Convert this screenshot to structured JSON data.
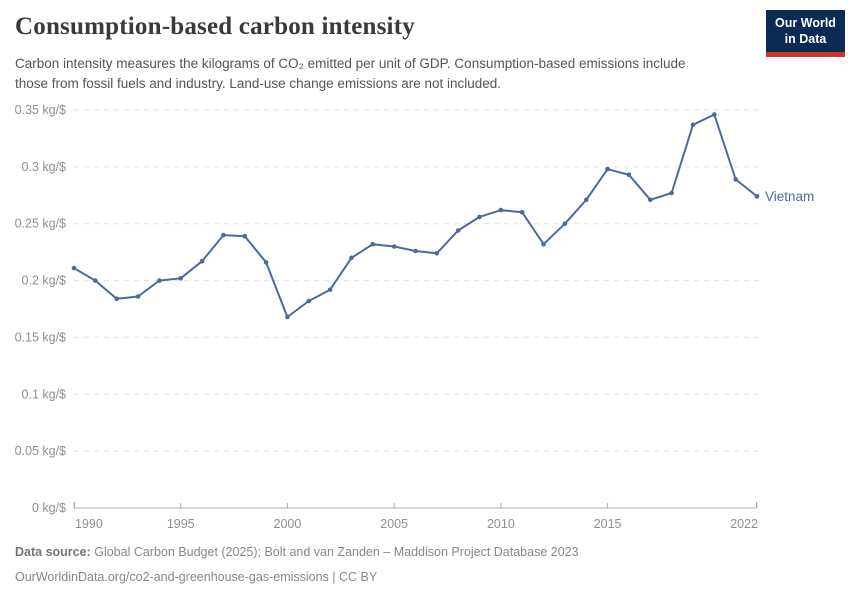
{
  "header": {
    "title": "Consumption-based carbon intensity",
    "subtitle": "Carbon intensity measures the kilograms of CO₂ emitted per unit of GDP. Consumption-based emissions include those from fossil fuels and industry. Land-use change emissions are not included.",
    "logo": {
      "line1": "Our World",
      "line2": "in Data",
      "bg_color": "#0c2b52",
      "accent_color": "#d0342c"
    }
  },
  "chart_data": {
    "type": "line",
    "title": "Consumption-based carbon intensity",
    "unit": "kg/$",
    "xlabel": "",
    "ylabel": "",
    "xlim": [
      1990,
      2022
    ],
    "ylim": [
      0,
      0.35
    ],
    "grid": "horizontal-dashed",
    "legend": "end-of-line-label",
    "series": [
      {
        "name": "Vietnam",
        "color": "#4c6a9c",
        "x": [
          1990,
          1991,
          1992,
          1993,
          1994,
          1995,
          1996,
          1997,
          1998,
          1999,
          2000,
          2001,
          2002,
          2003,
          2004,
          2005,
          2006,
          2007,
          2008,
          2009,
          2010,
          2011,
          2012,
          2013,
          2014,
          2015,
          2016,
          2017,
          2018,
          2019,
          2020,
          2021,
          2022
        ],
        "values": [
          0.211,
          0.2,
          0.184,
          0.186,
          0.2,
          0.202,
          0.217,
          0.24,
          0.239,
          0.216,
          0.168,
          0.182,
          0.192,
          0.22,
          0.232,
          0.23,
          0.226,
          0.224,
          0.244,
          0.256,
          0.262,
          0.26,
          0.232,
          0.25,
          0.271,
          0.298,
          0.293,
          0.271,
          0.277,
          0.337,
          0.346,
          0.289,
          0.274
        ]
      }
    ],
    "yticks": [
      {
        "v": 0,
        "label": "0 kg/$"
      },
      {
        "v": 0.05,
        "label": "0.05 kg/$"
      },
      {
        "v": 0.1,
        "label": "0.1 kg/$"
      },
      {
        "v": 0.15,
        "label": "0.15 kg/$"
      },
      {
        "v": 0.2,
        "label": "0.2 kg/$"
      },
      {
        "v": 0.25,
        "label": "0.25 kg/$"
      },
      {
        "v": 0.3,
        "label": "0.3 kg/$"
      },
      {
        "v": 0.35,
        "label": "0.35 kg/$"
      }
    ],
    "xticks": [
      {
        "v": 1990,
        "label": "1990"
      },
      {
        "v": 1995,
        "label": "1995"
      },
      {
        "v": 2000,
        "label": "2000"
      },
      {
        "v": 2005,
        "label": "2005"
      },
      {
        "v": 2010,
        "label": "2010"
      },
      {
        "v": 2015,
        "label": "2015"
      },
      {
        "v": 2022,
        "label": "2022"
      }
    ],
    "colors": {
      "grid": "#e0e0e0",
      "axis": "#b0b0b0",
      "tick_label": "#8f8f8f"
    }
  },
  "footer": {
    "source_label": "Data source:",
    "source_text": "Global Carbon Budget (2025); Bolt and van Zanden – Maddison Project Database 2023",
    "citation": "OurWorldinData.org/co2-and-greenhouse-gas-emissions | CC BY"
  }
}
